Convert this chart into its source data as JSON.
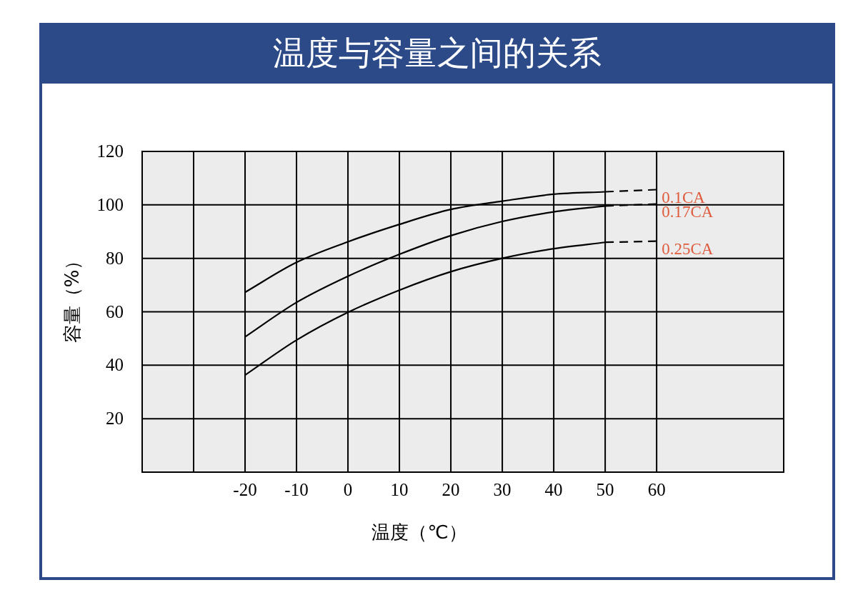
{
  "chart_data": {
    "type": "line",
    "title": "温度与容量之间的关系",
    "xlabel": "温度（℃）",
    "ylabel": "容量（%）",
    "xlim": [
      -40,
      84.7
    ],
    "xticks": [
      {
        "value": -30,
        "label": null
      },
      -20,
      -10,
      0,
      10,
      20,
      30,
      40,
      50,
      60
    ],
    "ylim": [
      0,
      120
    ],
    "yticks": [
      20,
      40,
      60,
      80,
      100,
      120
    ],
    "grid": true,
    "series": [
      {
        "name": "0.1CA",
        "color": "#000000",
        "x": [
          -20,
          -10,
          0,
          10,
          20,
          30,
          40,
          50
        ],
        "values": [
          67.3,
          78.5,
          86.2,
          92.7,
          98.3,
          101.4,
          104.0,
          104.9
        ]
      },
      {
        "color": "#000000",
        "line_style": "dashed",
        "x": [
          50,
          60
        ],
        "values": [
          104.9,
          105.7
        ]
      },
      {
        "name": "0.17CA",
        "color": "#000000",
        "x": [
          -20,
          -10,
          0,
          10,
          20,
          30,
          40,
          50
        ],
        "values": [
          50.6,
          63.5,
          73.3,
          81.5,
          88.5,
          93.8,
          97.4,
          99.6
        ]
      },
      {
        "color": "#000000",
        "line_style": "dashed",
        "x": [
          50,
          60
        ],
        "values": [
          99.6,
          100.3
        ]
      },
      {
        "name": "0.25CA",
        "color": "#000000",
        "x": [
          -20,
          -10,
          0,
          10,
          20,
          30,
          40,
          50
        ],
        "values": [
          36.3,
          49.4,
          59.8,
          68.1,
          75.0,
          80.0,
          83.6,
          86.0
        ]
      },
      {
        "color": "#000000",
        "line_style": "dashed",
        "x": [
          50,
          60
        ],
        "values": [
          86.0,
          86.4
        ]
      }
    ]
  }
}
